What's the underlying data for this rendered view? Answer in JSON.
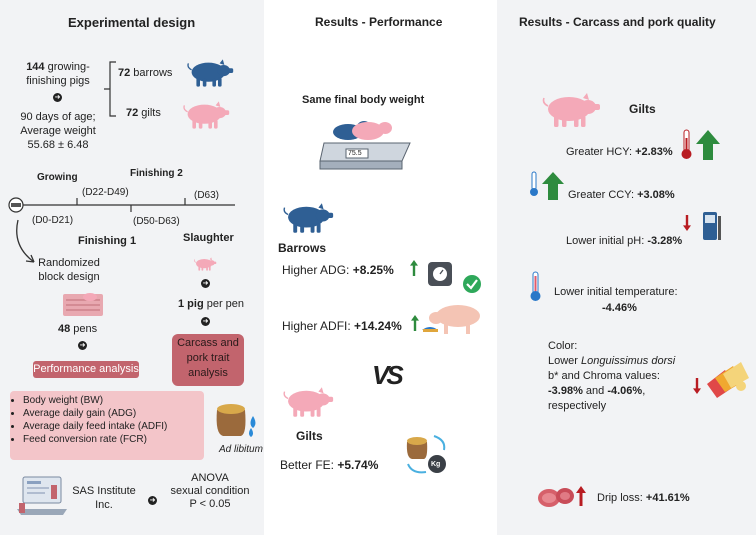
{
  "design": {
    "title": "Experimental design",
    "pigs_count": "144",
    "pigs_label": " growing-",
    "pigs_label2": "finishing pigs",
    "age_text": "90 days of age;",
    "weight_label": "Average weight",
    "weight_value": "55.68 ± 6.48",
    "barrows_count": "72",
    "barrows_label": " barrows",
    "gilts_count": "72",
    "gilts_label": " gilts",
    "timeline": {
      "growing": "Growing",
      "growing_days": "(D0-D21)",
      "finishing2": "Finishing 2",
      "d22": "(D22-D49)",
      "d63": "(D63)",
      "d50": "(D50-D63)",
      "finishing1": "Finishing 1",
      "slaughter": "Slaughter"
    },
    "randomized": "Randomized block design",
    "pens_count": "48",
    "pens_label": " pens",
    "pig_per_pen_count": "1 pig",
    "pig_per_pen_label": " per pen",
    "performance_analysis": "Performance analysis",
    "carcass_analysis": "Carcass and pork trait analysis",
    "measures": [
      "Body weight (BW)",
      "Average daily gain (ADG)",
      "Average daily feed intake (ADFI)",
      "Feed conversion rate (FCR)"
    ],
    "ad_libitum": "Ad libitum",
    "sas": "SAS Institute Inc.",
    "anova": "ANOVA",
    "sexual_condition": "sexual condition",
    "p_value": "P < 0.05"
  },
  "performance": {
    "title": "Results - Performance",
    "same_weight": "Same final body weight",
    "barrows": "Barrows",
    "adg_label": "Higher ADG: ",
    "adg_value": "+8.25%",
    "adfi_label": "Higher ADFI: ",
    "adfi_value": "+14.24%",
    "vs": "VS",
    "gilts": "Gilts",
    "fe_label": "Better FE: ",
    "fe_value": "+5.74%",
    "kg": "Kg",
    "scale_readout": "75.5"
  },
  "quality": {
    "title": "Results -  Carcass and pork quality",
    "gilts": "Gilts",
    "hcy_label": "Greater HCY: ",
    "hcy_value": "+2.83%",
    "ccy_label": "Greater CCY: ",
    "ccy_value": "+3.08%",
    "ph_label": "Lower initial pH: ",
    "ph_value": "-3.28%",
    "temp_label": "Lower initial temperature:",
    "temp_value": "-4.46%",
    "color_label": "Color:",
    "lower": "Lower ",
    "muscle": "Longuissimus dorsi",
    "color_line3": "b* and Chroma values:",
    "color_v1": "-3.98%",
    "color_and": " and ",
    "color_v2": "-4.06%",
    "color_comma": ",",
    "respectively": "respectively",
    "drip_label": "Drip loss: ",
    "drip_value": "+41.61%"
  },
  "colors": {
    "blue_pig": "#2f5f94",
    "pink_pig": "#f4a9b8",
    "red_box": "#c2646d",
    "pink_box": "#f3c5c9",
    "up_green": "#2e8b3e",
    "down_red": "#b81c22"
  }
}
